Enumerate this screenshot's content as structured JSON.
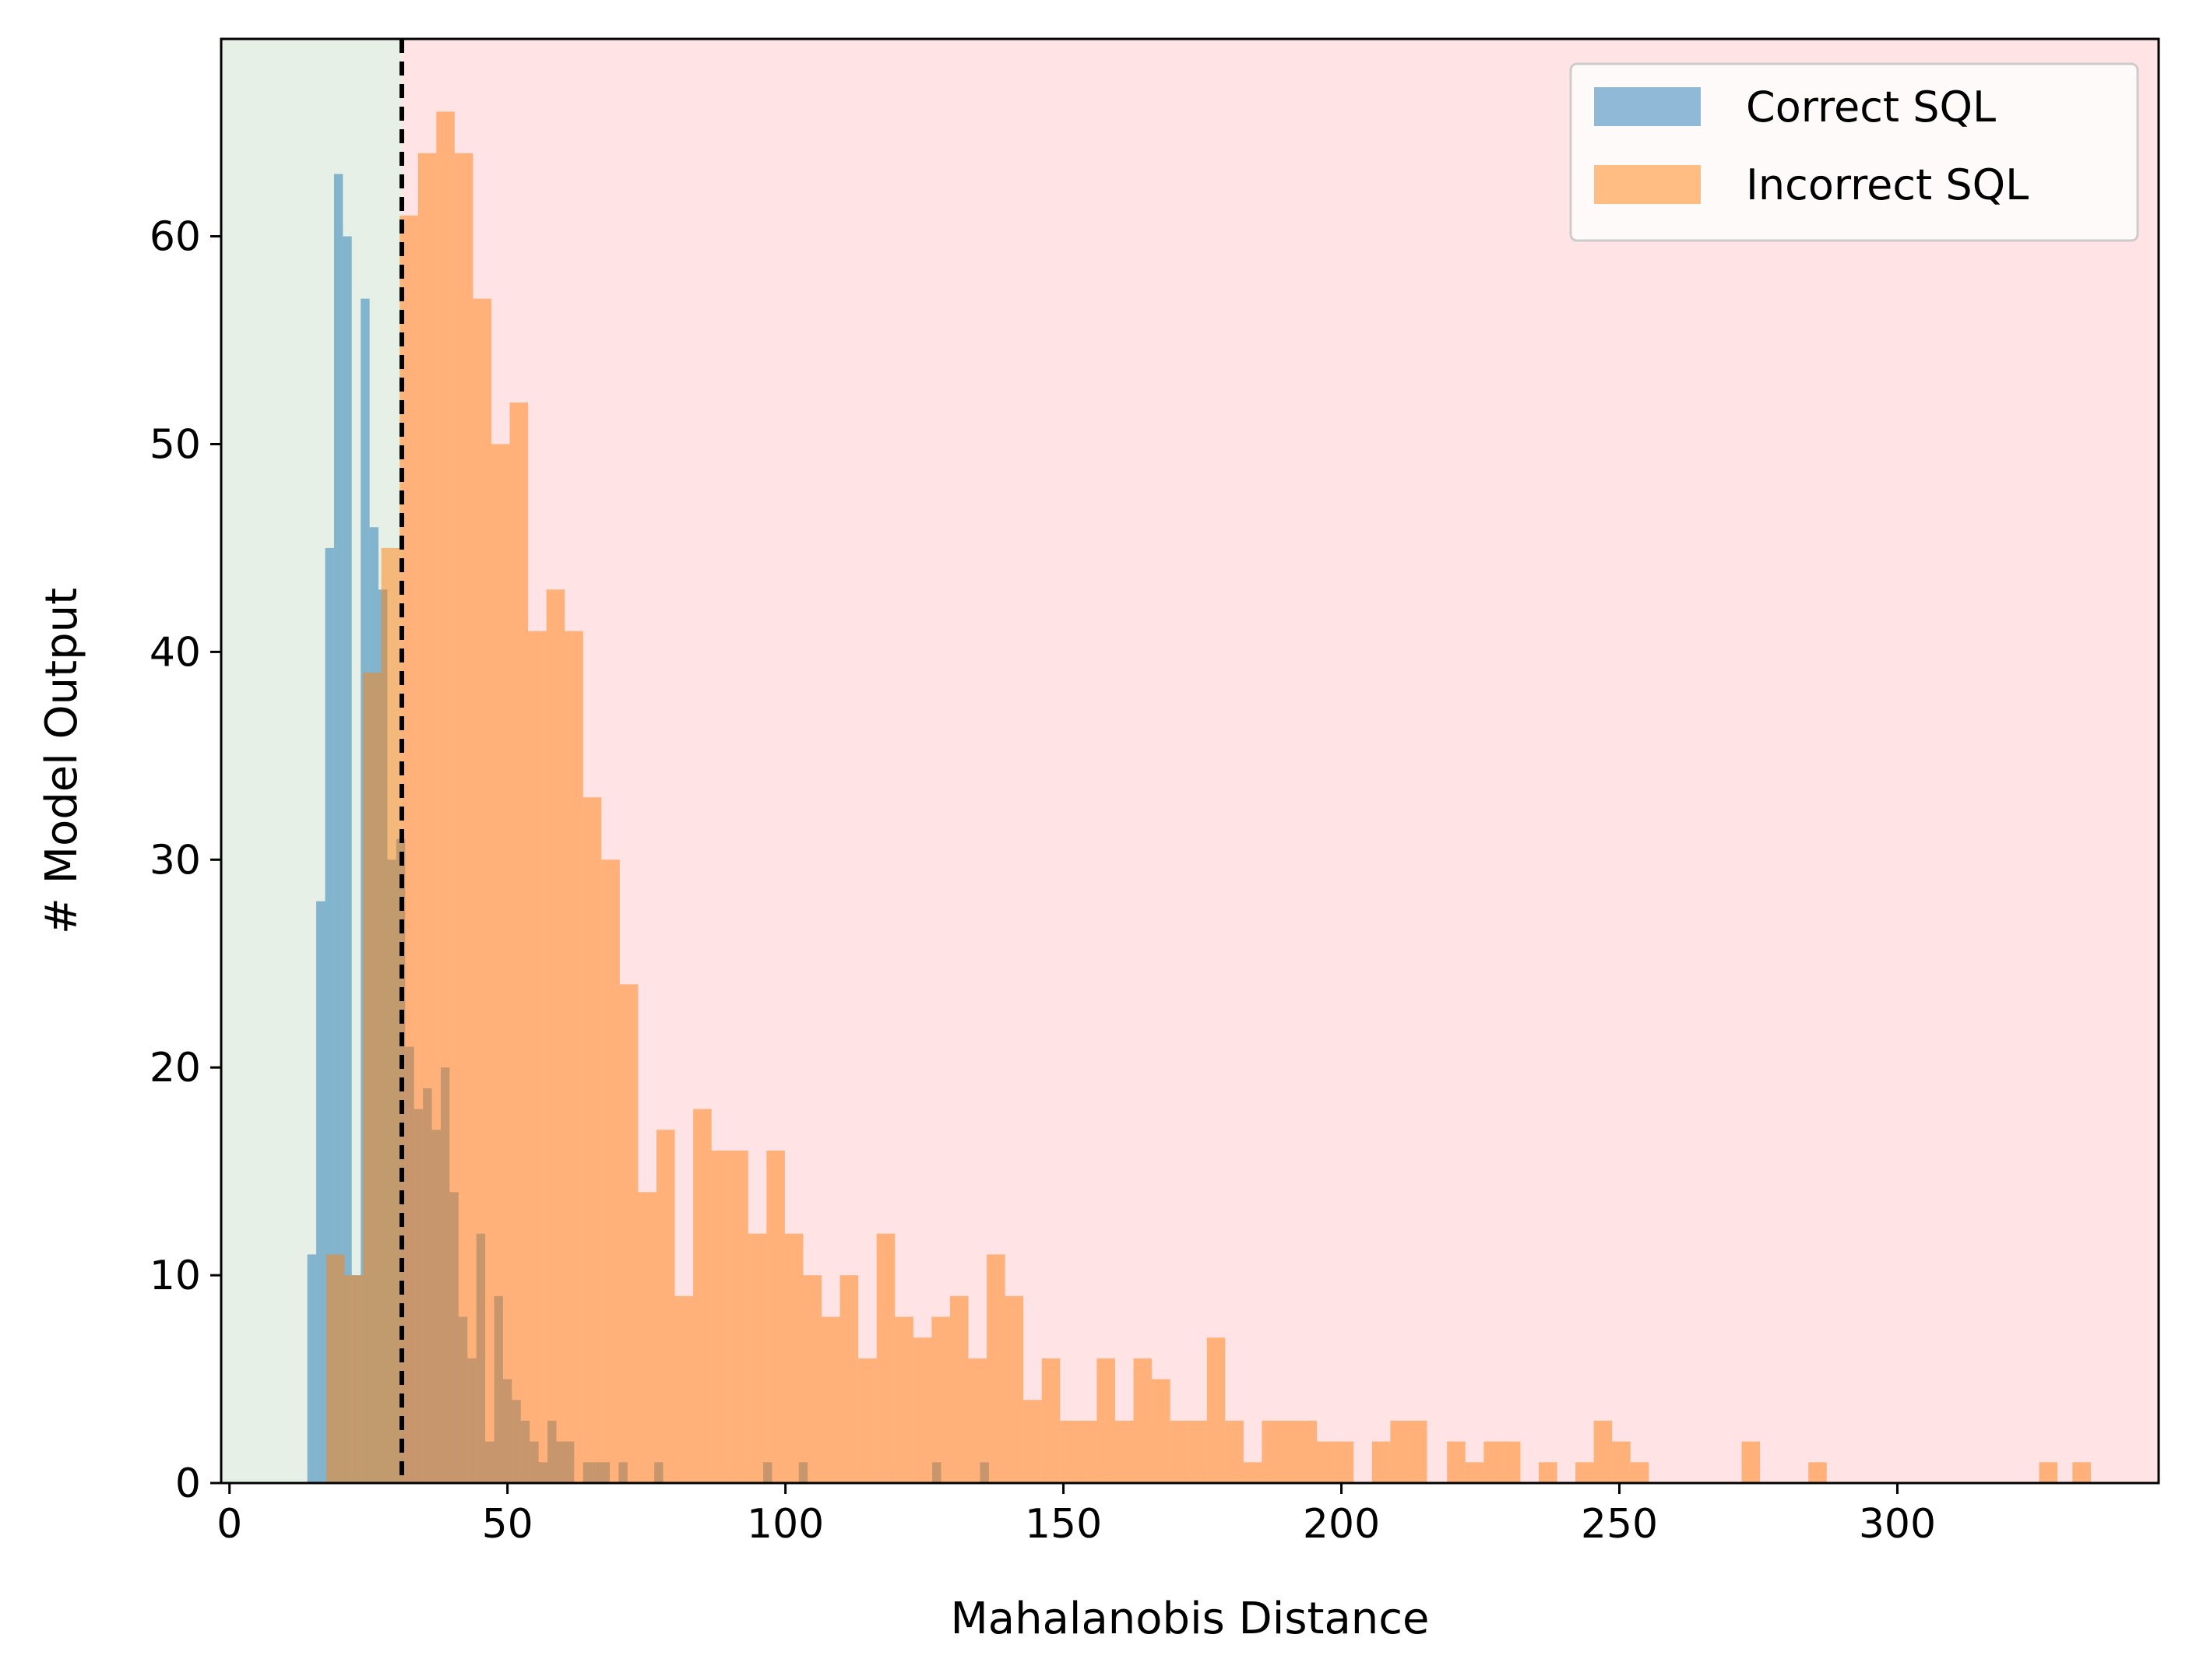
{
  "chart_data": {
    "type": "bar",
    "xlabel": "Mahalanobis Distance",
    "ylabel": "# Model Output",
    "xlim": [
      -1.5,
      347
    ],
    "ylim": [
      0,
      69.5
    ],
    "xticks": [
      0,
      50,
      100,
      150,
      200,
      250,
      300
    ],
    "yticks": [
      0,
      10,
      20,
      30,
      40,
      50,
      60
    ],
    "threshold": 31,
    "regions": [
      {
        "from": -1.5,
        "to": 31,
        "color": "#e6f0e6"
      },
      {
        "from": 31,
        "to": 347,
        "color": "#ffe3e5"
      }
    ],
    "grid": false,
    "legend_position": "top-right",
    "series": [
      {
        "name": "Correct SQL",
        "color": "#1f77b4",
        "opacity": 0.5,
        "bin_width": 1.6,
        "bins": [
          [
            14,
            11
          ],
          [
            15.6,
            28
          ],
          [
            17.2,
            45
          ],
          [
            18.8,
            63
          ],
          [
            20.4,
            60
          ],
          [
            22,
            10
          ],
          [
            23.6,
            57
          ],
          [
            25.2,
            46
          ],
          [
            26.8,
            43
          ],
          [
            28.4,
            30
          ],
          [
            30,
            31
          ],
          [
            31.6,
            21
          ],
          [
            33.2,
            18
          ],
          [
            34.8,
            19
          ],
          [
            36.4,
            17
          ],
          [
            38,
            20
          ],
          [
            39.6,
            14
          ],
          [
            41.2,
            8
          ],
          [
            42.8,
            6
          ],
          [
            44.4,
            12
          ],
          [
            46,
            2
          ],
          [
            47.6,
            9
          ],
          [
            49.2,
            5
          ],
          [
            50.8,
            4
          ],
          [
            52.4,
            3
          ],
          [
            54,
            2
          ],
          [
            55.6,
            1
          ],
          [
            57.2,
            3
          ],
          [
            58.8,
            2
          ],
          [
            60.4,
            2
          ],
          [
            63.6,
            1
          ],
          [
            65.2,
            1
          ],
          [
            66.8,
            1
          ],
          [
            70,
            1
          ],
          [
            76.4,
            1
          ],
          [
            96,
            1
          ],
          [
            102.4,
            1
          ],
          [
            126.4,
            1
          ],
          [
            135,
            1
          ]
        ]
      },
      {
        "name": "Incorrect SQL",
        "color": "#ff7f0e",
        "opacity": 0.5,
        "bin_width": 3.3,
        "bins": [
          [
            17.4,
            11
          ],
          [
            20.7,
            10
          ],
          [
            24,
            39
          ],
          [
            27.3,
            45
          ],
          [
            30.6,
            61
          ],
          [
            33.9,
            64
          ],
          [
            37.2,
            66
          ],
          [
            40.5,
            64
          ],
          [
            43.8,
            57
          ],
          [
            47.1,
            50
          ],
          [
            50.4,
            52
          ],
          [
            53.7,
            41
          ],
          [
            57,
            43
          ],
          [
            60.3,
            41
          ],
          [
            63.6,
            33
          ],
          [
            66.9,
            30
          ],
          [
            70.2,
            24
          ],
          [
            73.5,
            14
          ],
          [
            76.8,
            17
          ],
          [
            80.1,
            9
          ],
          [
            83.4,
            18
          ],
          [
            86.7,
            16
          ],
          [
            90,
            16
          ],
          [
            93.3,
            12
          ],
          [
            96.6,
            16
          ],
          [
            99.9,
            12
          ],
          [
            103.2,
            10
          ],
          [
            106.5,
            8
          ],
          [
            109.8,
            10
          ],
          [
            113.1,
            6
          ],
          [
            116.4,
            12
          ],
          [
            119.7,
            8
          ],
          [
            123,
            7
          ],
          [
            126.3,
            8
          ],
          [
            129.6,
            9
          ],
          [
            132.9,
            6
          ],
          [
            136.2,
            11
          ],
          [
            139.5,
            9
          ],
          [
            142.8,
            4
          ],
          [
            146.1,
            6
          ],
          [
            149.4,
            3
          ],
          [
            152.7,
            3
          ],
          [
            156,
            6
          ],
          [
            159.3,
            3
          ],
          [
            162.6,
            6
          ],
          [
            165.9,
            5
          ],
          [
            169.2,
            3
          ],
          [
            172.5,
            3
          ],
          [
            175.8,
            7
          ],
          [
            179.1,
            3
          ],
          [
            182.4,
            1
          ],
          [
            185.7,
            3
          ],
          [
            189,
            3
          ],
          [
            192.3,
            3
          ],
          [
            195.6,
            2
          ],
          [
            198.9,
            2
          ],
          [
            205.5,
            2
          ],
          [
            208.8,
            3
          ],
          [
            212.1,
            3
          ],
          [
            219,
            2
          ],
          [
            222.3,
            1
          ],
          [
            225.6,
            2
          ],
          [
            228.9,
            2
          ],
          [
            235.5,
            1
          ],
          [
            242.1,
            1
          ],
          [
            245.4,
            3
          ],
          [
            248.7,
            2
          ],
          [
            252,
            1
          ],
          [
            272,
            2
          ],
          [
            284,
            1
          ],
          [
            325.5,
            1
          ],
          [
            331.5,
            1
          ]
        ]
      }
    ]
  }
}
